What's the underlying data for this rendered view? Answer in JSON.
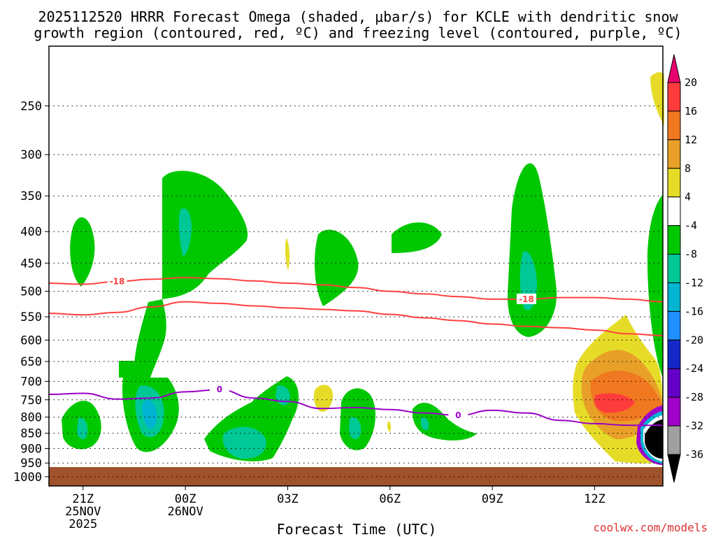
{
  "chart_data": {
    "type": "heatmap",
    "title_line1": "2025112520 HRRR Forecast Omega (shaded, μbar/s) for KCLE with dendritic snow",
    "title_line2": "growth region (contoured, red, ºC) and freezing level (contoured, purple, ºC)",
    "xlabel": "Forecast Time (UTC)",
    "credit": "coolwx.com/models",
    "y_axis": {
      "unit": "hPa",
      "range": [
        1035,
        200
      ],
      "ticks": [
        250,
        300,
        350,
        400,
        450,
        500,
        550,
        600,
        650,
        700,
        750,
        800,
        850,
        900,
        950,
        1000
      ],
      "tick_labels": [
        "250",
        "300",
        "350",
        "400",
        "450",
        "500",
        "550",
        "600",
        "650",
        "700",
        "750",
        "800",
        "850",
        "900",
        "950",
        "1000"
      ]
    },
    "x_axis": {
      "range_hours": [
        20,
        38
      ],
      "ticks": [
        {
          "hour": 21,
          "lines": [
            "21Z",
            "25NOV",
            "2025"
          ]
        },
        {
          "hour": 24,
          "lines": [
            "00Z",
            "26NOV"
          ]
        },
        {
          "hour": 27,
          "lines": [
            "03Z"
          ]
        },
        {
          "hour": 30,
          "lines": [
            "06Z"
          ]
        },
        {
          "hour": 33,
          "lines": [
            "09Z"
          ]
        },
        {
          "hour": 36,
          "lines": [
            "12Z"
          ]
        }
      ]
    },
    "colorbar": {
      "levels": [
        20,
        16,
        12,
        8,
        4,
        -4,
        -8,
        -12,
        -16,
        -20,
        -24,
        -28,
        -32,
        -36
      ],
      "labels": [
        "20",
        "16",
        "12",
        "8",
        "4",
        "-4",
        "-8",
        "-12",
        "-16",
        "-20",
        "-24",
        "-28",
        "-32",
        "-36"
      ],
      "colors_top_to_bottom": [
        "#e8006e",
        "#ff3c3c",
        "#f07820",
        "#e8a028",
        "#e6dc28",
        "#ffffff",
        "#00c800",
        "#00c896",
        "#00b4d2",
        "#1e90ff",
        "#1428c8",
        "#6400c8",
        "#a000c8",
        "#a0a0a0",
        "#000000"
      ]
    },
    "series": [
      {
        "name": "dendritic growth region isotherm",
        "color": "#ff4040",
        "label": "-18",
        "points": [
          [
            20,
            485
          ],
          [
            21,
            487
          ],
          [
            22,
            482
          ],
          [
            23,
            478
          ],
          [
            24,
            475
          ],
          [
            25,
            477
          ],
          [
            26,
            481
          ],
          [
            27,
            485
          ],
          [
            28,
            488
          ],
          [
            29,
            493
          ],
          [
            30,
            500
          ],
          [
            31,
            505
          ],
          [
            32,
            510
          ],
          [
            33,
            515
          ],
          [
            34,
            515
          ],
          [
            35,
            512
          ],
          [
            36,
            512
          ],
          [
            37,
            515
          ],
          [
            38,
            520
          ]
        ]
      },
      {
        "name": "dendritic growth region isotherm",
        "color": "#ff4040",
        "label": "",
        "points": [
          [
            20,
            543
          ],
          [
            21,
            546
          ],
          [
            22,
            541
          ],
          [
            23,
            530
          ],
          [
            24,
            520
          ],
          [
            25,
            523
          ],
          [
            26,
            528
          ],
          [
            27,
            532
          ],
          [
            28,
            535
          ],
          [
            29,
            538
          ],
          [
            30,
            545
          ],
          [
            31,
            552
          ],
          [
            32,
            558
          ],
          [
            33,
            565
          ],
          [
            34,
            570
          ],
          [
            35,
            573
          ],
          [
            36,
            578
          ],
          [
            37,
            586
          ],
          [
            38,
            590
          ]
        ]
      },
      {
        "name": "freezing level",
        "color": "#9a00c8",
        "label": "0",
        "points": [
          [
            20,
            735
          ],
          [
            21,
            732
          ],
          [
            22,
            748
          ],
          [
            23,
            745
          ],
          [
            24,
            728
          ],
          [
            25,
            722
          ],
          [
            26,
            745
          ],
          [
            27,
            755
          ],
          [
            28,
            775
          ],
          [
            29,
            772
          ],
          [
            30,
            778
          ],
          [
            31,
            788
          ],
          [
            32,
            795
          ],
          [
            33,
            780
          ],
          [
            34,
            788
          ],
          [
            35,
            810
          ],
          [
            36,
            820
          ],
          [
            37,
            825
          ],
          [
            38,
            825
          ]
        ]
      }
    ]
  }
}
